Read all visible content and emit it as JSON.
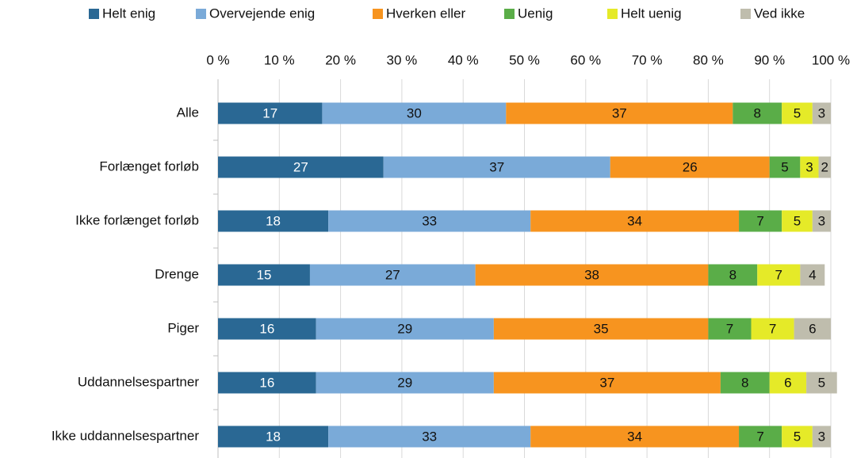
{
  "chart_data": {
    "type": "stacked-barh",
    "categories": [
      "Alle",
      "Forlænget forløb",
      "Ikke forlænget forløb",
      "Drenge",
      "Piger",
      "Uddannelsespartner",
      "Ikke uddannelsespartner"
    ],
    "series": [
      {
        "name": "Helt enig",
        "color": "#2a6894",
        "values": [
          17,
          27,
          18,
          15,
          16,
          16,
          18
        ]
      },
      {
        "name": "Overvejende enig",
        "color": "#7aaad8",
        "values": [
          30,
          37,
          33,
          27,
          29,
          29,
          33
        ]
      },
      {
        "name": "Hverken eller",
        "color": "#f7941f",
        "values": [
          37,
          26,
          34,
          38,
          35,
          37,
          34
        ]
      },
      {
        "name": "Uenig",
        "color": "#5aad48",
        "values": [
          8,
          5,
          7,
          8,
          7,
          8,
          7
        ]
      },
      {
        "name": "Helt uenig",
        "color": "#e5ea28",
        "values": [
          5,
          3,
          5,
          7,
          7,
          6,
          5
        ]
      },
      {
        "name": "Ved ikke",
        "color": "#bfbdad",
        "values": [
          3,
          2,
          3,
          4,
          6,
          5,
          3
        ]
      }
    ],
    "xlim": [
      0,
      100
    ],
    "xticks": [
      {
        "value": 0,
        "label": "0 %"
      },
      {
        "value": 10,
        "label": "10 %"
      },
      {
        "value": 20,
        "label": "20 %"
      },
      {
        "value": 30,
        "label": "30 %"
      },
      {
        "value": 40,
        "label": "40 %"
      },
      {
        "value": 50,
        "label": "50 %"
      },
      {
        "value": 60,
        "label": "60 %"
      },
      {
        "value": 70,
        "label": "70 %"
      },
      {
        "value": 80,
        "label": "80 %"
      },
      {
        "value": 90,
        "label": "90 %"
      },
      {
        "value": 100,
        "label": "100 %"
      }
    ],
    "grid": true,
    "legend": "top"
  }
}
